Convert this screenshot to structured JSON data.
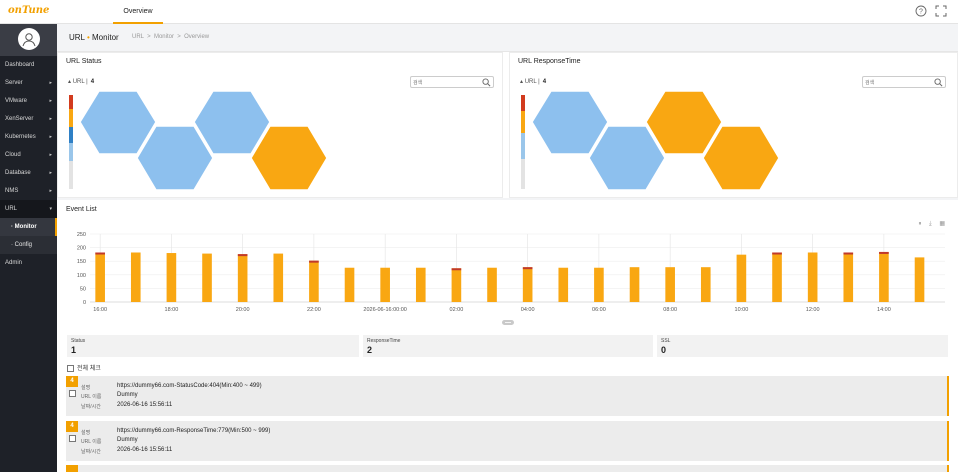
{
  "app": {
    "logo": "onTune"
  },
  "top_tab": "Overview",
  "breadcrumb": {
    "title_a": "URL",
    "title_b": "Monitor",
    "path": "URL  >  Monitor  >  Overview"
  },
  "sidebar": {
    "items": [
      {
        "label": "Dashboard"
      },
      {
        "label": "Server",
        "caret": "▸"
      },
      {
        "label": "VMware",
        "caret": "▸"
      },
      {
        "label": "XenServer",
        "caret": "▸"
      },
      {
        "label": "Kubernetes",
        "caret": "▸"
      },
      {
        "label": "Cloud",
        "caret": "▸"
      },
      {
        "label": "Database",
        "caret": "▸"
      },
      {
        "label": "NMS",
        "caret": "▸"
      },
      {
        "label": "URL",
        "caret": "▾"
      },
      {
        "label": "· Monitor"
      },
      {
        "label": "· Config"
      },
      {
        "label": "Admin"
      }
    ]
  },
  "url_status": {
    "title": "URL Status",
    "count_label": "URL",
    "count": "4",
    "search_placeholder": "검색"
  },
  "url_response": {
    "title": "URL ResponseTime",
    "count_label": "URL",
    "count": "4",
    "search_placeholder": "검색"
  },
  "colors": {
    "accent": "#f2a000",
    "hex_blue": "#8dc0ee",
    "hex_orange": "#f9a712",
    "status_red": "#d23b1e",
    "status_blue": "#2f80c5",
    "status_lightblue": "#9ac6ea"
  },
  "status_hexes": [
    "blue",
    "blue",
    "blue",
    "orange"
  ],
  "response_hexes": [
    "blue",
    "blue",
    "orange",
    "orange"
  ],
  "event_list": {
    "title": "Event List",
    "tools": "⏸ ⤓ ▦",
    "chart_data": {
      "type": "bar",
      "ylim": [
        0,
        250
      ],
      "yticks": [
        "250",
        "200",
        "150",
        "100",
        "50",
        "0"
      ],
      "xticks": [
        "16:00",
        "18:00",
        "20:00",
        "22:00",
        "2026-06-16:00:00",
        "02:00",
        "04:00",
        "06:00",
        "08:00",
        "10:00",
        "12:00",
        "14:00"
      ],
      "series": [
        {
          "values": [
            182,
            182,
            180,
            178,
            176,
            178,
            152,
            126,
            126,
            126,
            124,
            126,
            128,
            126,
            126,
            128,
            128,
            128,
            174,
            182,
            182,
            182,
            184,
            164
          ]
        }
      ],
      "error_markers": [
        true,
        false,
        false,
        false,
        true,
        false,
        true,
        false,
        false,
        false,
        true,
        false,
        true,
        false,
        false,
        false,
        false,
        false,
        false,
        true,
        false,
        true,
        true,
        false
      ]
    },
    "summary": [
      {
        "label": "Status",
        "value": "1"
      },
      {
        "label": "ResponseTime",
        "value": "2"
      },
      {
        "label": "SSL",
        "value": "0"
      }
    ],
    "check_all": "전체 체크",
    "events": [
      {
        "level": "4",
        "k1": "설명",
        "k2": "URL 이름",
        "k3": "날짜/시간",
        "url": "https://dummy66.com-StatusCode:404(Min:400 ~ 499)",
        "name": "Dummy",
        "time": "2026-06-16 15:56:11"
      },
      {
        "level": "4",
        "k1": "설명",
        "k2": "URL 이름",
        "k3": "날짜/시간",
        "url": "https://dummy66.com-ResponseTime:779(Min:500 ~ 999)",
        "name": "Dummy",
        "time": "2026-06-16 15:56:11"
      }
    ]
  }
}
